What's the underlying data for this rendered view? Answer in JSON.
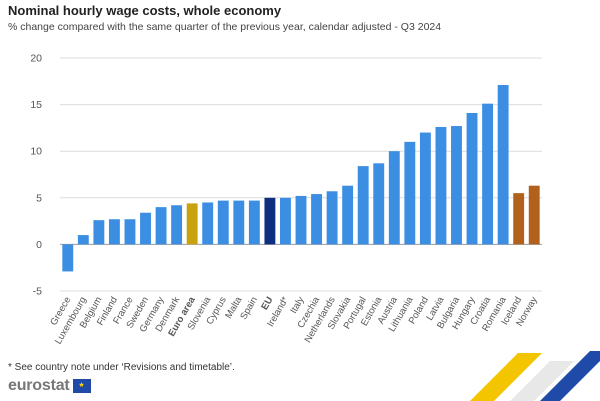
{
  "title": "Nominal hourly wage costs, whole economy",
  "subtitle": "% change compared with the same quarter of the previous year, calendar adjusted - Q3 2024",
  "footnote": "* See country note under ‘Revisions and timetable’.",
  "logo": {
    "text": "eurostat",
    "flag_icon": "eu-flag-icon"
  },
  "colors": {
    "default": "#3b8ee2",
    "euro_area": "#c9a20f",
    "eu": "#0d2f7d",
    "efta": "#b1611c",
    "axis": "#999999",
    "grid": "#dcdcdc"
  },
  "chart_data": {
    "type": "bar",
    "title": "Nominal hourly wage costs, whole economy",
    "subtitle": "% change compared with the same quarter of the previous year, calendar adjusted - Q3 2024",
    "xlabel": "",
    "ylabel": "",
    "ylim": [
      -5,
      20
    ],
    "yticks": [
      -5,
      0,
      5,
      10,
      15,
      20
    ],
    "grid": true,
    "categories": [
      "Greece",
      "Luxembourg",
      "Belgium",
      "Finland",
      "France",
      "Sweden",
      "Germany",
      "Denmark",
      "Euro area",
      "Slovenia",
      "Cyprus",
      "Malta",
      "Spain",
      "EU",
      "Ireland*",
      "Italy",
      "Czechia",
      "Netherlands",
      "Slovakia",
      "Portugal",
      "Estonia",
      "Austria",
      "Lithuania",
      "Poland",
      "Latvia",
      "Bulgaria",
      "Hungary",
      "Croatia",
      "Romania",
      "Iceland",
      "Norway"
    ],
    "values": [
      -2.9,
      1.0,
      2.6,
      2.7,
      2.7,
      3.4,
      4.0,
      4.2,
      4.4,
      4.5,
      4.7,
      4.7,
      4.7,
      5.0,
      5.0,
      5.2,
      5.4,
      5.7,
      6.3,
      8.4,
      8.7,
      10.0,
      11.0,
      12.0,
      12.6,
      12.7,
      14.1,
      15.1,
      17.1,
      5.5,
      6.3
    ],
    "bold_categories": [
      "Euro area",
      "EU"
    ],
    "highlight": {
      "Euro area": "euro_area",
      "EU": "eu",
      "Iceland": "efta",
      "Norway": "efta"
    }
  }
}
